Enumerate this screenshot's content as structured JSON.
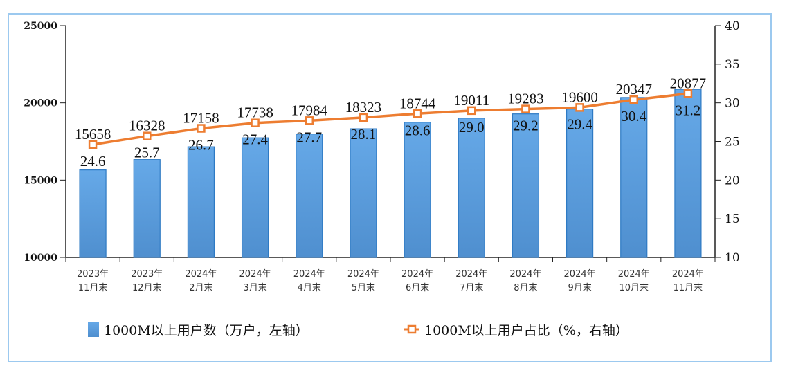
{
  "chart_data": {
    "type": "bar+line",
    "categories": [
      [
        "2023年",
        "11月末"
      ],
      [
        "2023年",
        "12月末"
      ],
      [
        "2024年",
        "2月末"
      ],
      [
        "2024年",
        "3月末"
      ],
      [
        "2024年",
        "4月末"
      ],
      [
        "2024年",
        "5月末"
      ],
      [
        "2024年",
        "6月末"
      ],
      [
        "2024年",
        "7月末"
      ],
      [
        "2024年",
        "8月末"
      ],
      [
        "2024年",
        "9月末"
      ],
      [
        "2024年",
        "10月末"
      ],
      [
        "2024年",
        "11月末"
      ]
    ],
    "series": [
      {
        "name": "1000M以上用户数（万户，左轴）",
        "type": "bar",
        "axis": "left",
        "color": "#5b9fe0",
        "values": [
          15658,
          16328,
          17158,
          17738,
          17984,
          18323,
          18744,
          19011,
          19283,
          19600,
          20347,
          20877
        ]
      },
      {
        "name": "1000M以上用户占比（%，右轴）",
        "type": "line",
        "axis": "right",
        "color": "#ed7d31",
        "values": [
          24.6,
          25.7,
          26.7,
          27.4,
          27.7,
          28.1,
          28.6,
          29.0,
          29.2,
          29.4,
          30.4,
          31.2
        ]
      }
    ],
    "left_axis": {
      "range": [
        10000,
        25000
      ],
      "ticks": [
        "10000",
        "15000",
        "20000",
        "25000"
      ]
    },
    "right_axis": {
      "range": [
        10,
        40
      ],
      "ticks": [
        "10",
        "15",
        "20",
        "25",
        "30",
        "35",
        "40"
      ]
    },
    "legend_placement": "bottom",
    "grid": false
  }
}
